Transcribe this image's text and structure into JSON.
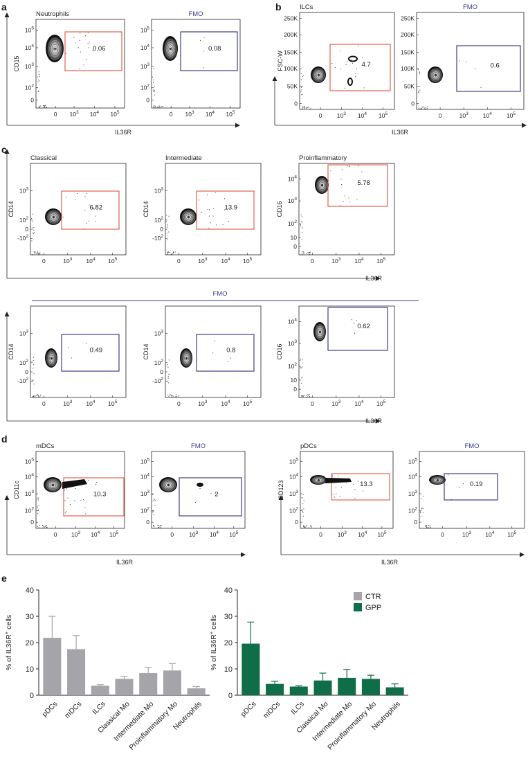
{
  "panels": {
    "a": {
      "label": "a",
      "plots": [
        {
          "title": "Neutrophils",
          "fmo": false,
          "y_label": "CD15",
          "gate_value": "0.06"
        },
        {
          "title": "FMO",
          "fmo": true,
          "y_label": "",
          "gate_value": "0.08"
        }
      ],
      "x_label": "IL36R",
      "y_ticks": [
        "10^5",
        "10^4",
        "10^3",
        "10^2",
        "0"
      ],
      "x_ticks": [
        "0",
        "10^3",
        "10^4",
        "10^5"
      ]
    },
    "b": {
      "label": "b",
      "plots": [
        {
          "title": "ILCs",
          "fmo": false,
          "y_label": "FSC-W",
          "gate_value": "4.7"
        },
        {
          "title": "FMO",
          "fmo": true,
          "y_label": "",
          "gate_value": "0.6"
        }
      ],
      "x_label": "IL36R",
      "y_ticks": [
        "250K",
        "200K",
        "150K",
        "100K",
        "50K",
        "0"
      ],
      "x_ticks": [
        "0",
        "10^3",
        "10^4",
        "10^5"
      ]
    },
    "c": {
      "label": "c",
      "stained": [
        {
          "title": "Classical",
          "y_label": "CD14",
          "gate_value": "6.82"
        },
        {
          "title": "Intermediate",
          "y_label": "CD14",
          "gate_value": "13.9"
        },
        {
          "title": "Proinflammatory",
          "y_label": "CD16",
          "gate_value": "5.78"
        }
      ],
      "fmo_title": "FMO",
      "fmo": [
        {
          "y_label": "CD14",
          "gate_value": "0.49"
        },
        {
          "y_label": "CD14",
          "gate_value": "0.8"
        },
        {
          "y_label": "CD16",
          "gate_value": "0.62"
        }
      ],
      "x_label": "IL36R",
      "cd14_y_ticks": [
        "10^3",
        "10^2",
        "0",
        "-10^2"
      ],
      "cd16_y_ticks": [
        "10^4",
        "10^3",
        "10^2",
        "10",
        "0"
      ],
      "x_ticks": [
        "0",
        "10^3",
        "10^4",
        "10^5"
      ]
    },
    "d": {
      "label": "d",
      "left": [
        {
          "title": "mDCs",
          "fmo": false,
          "y_label": "CD11c",
          "gate_value": "10.3"
        },
        {
          "title": "FMO",
          "fmo": true,
          "y_label": "",
          "gate_value": "2"
        }
      ],
      "right": [
        {
          "title": "pDCs",
          "fmo": false,
          "y_label": "CD123",
          "gate_value": "13.3"
        },
        {
          "title": "FMO",
          "fmo": true,
          "y_label": "",
          "gate_value": "0.19"
        }
      ],
      "x_label": "IL36R",
      "y_ticks": [
        "10^5",
        "10^4",
        "10^3",
        "10^2",
        "0"
      ],
      "x_ticks": [
        "0",
        "10^3",
        "10^4",
        "10^5"
      ]
    },
    "e": {
      "label": "e"
    }
  },
  "colors": {
    "gate_stained": "#e0533e",
    "gate_fmo": "#2c2c7c",
    "fmo_text": "#3a3a8c",
    "ctr": "#a4a4a9",
    "gpp": "#0f6e47"
  },
  "chart_data": [
    {
      "type": "bar",
      "panel": "e-left",
      "categories": [
        "pDCs",
        "mDCs",
        "ILCs",
        "Classical Mo",
        "Intermediate Mo",
        "Proinflammatory Mo",
        "Neutrophils"
      ],
      "series": [
        {
          "name": "CTR",
          "values": [
            21.8,
            17.5,
            3.6,
            6.2,
            8.4,
            9.4,
            2.6
          ],
          "errors": [
            8.2,
            5.2,
            0.4,
            1.0,
            2.2,
            2.6,
            0.7
          ]
        }
      ],
      "ylabel": "% of IL36R+ cells",
      "ylim": [
        0,
        40
      ],
      "yticks": [
        0,
        10,
        20,
        30,
        40
      ]
    },
    {
      "type": "bar",
      "panel": "e-right",
      "categories": [
        "pDCs",
        "mDCs",
        "ILCs",
        "Classical Mo",
        "Intermediate Mo",
        "Proinflammatory Mo",
        "Neutrophils"
      ],
      "series": [
        {
          "name": "GPP",
          "values": [
            19.6,
            4.3,
            3.3,
            5.6,
            6.6,
            6.2,
            3.0
          ],
          "errors": [
            8.2,
            1.0,
            0.3,
            2.8,
            3.2,
            1.4,
            1.3
          ]
        }
      ],
      "ylabel": "% of IL36R+ cells",
      "ylim": [
        0,
        40
      ],
      "yticks": [
        0,
        10,
        20,
        30,
        40
      ],
      "legend": {
        "entries": [
          "CTR",
          "GPP"
        ],
        "position": "top-right"
      }
    }
  ]
}
